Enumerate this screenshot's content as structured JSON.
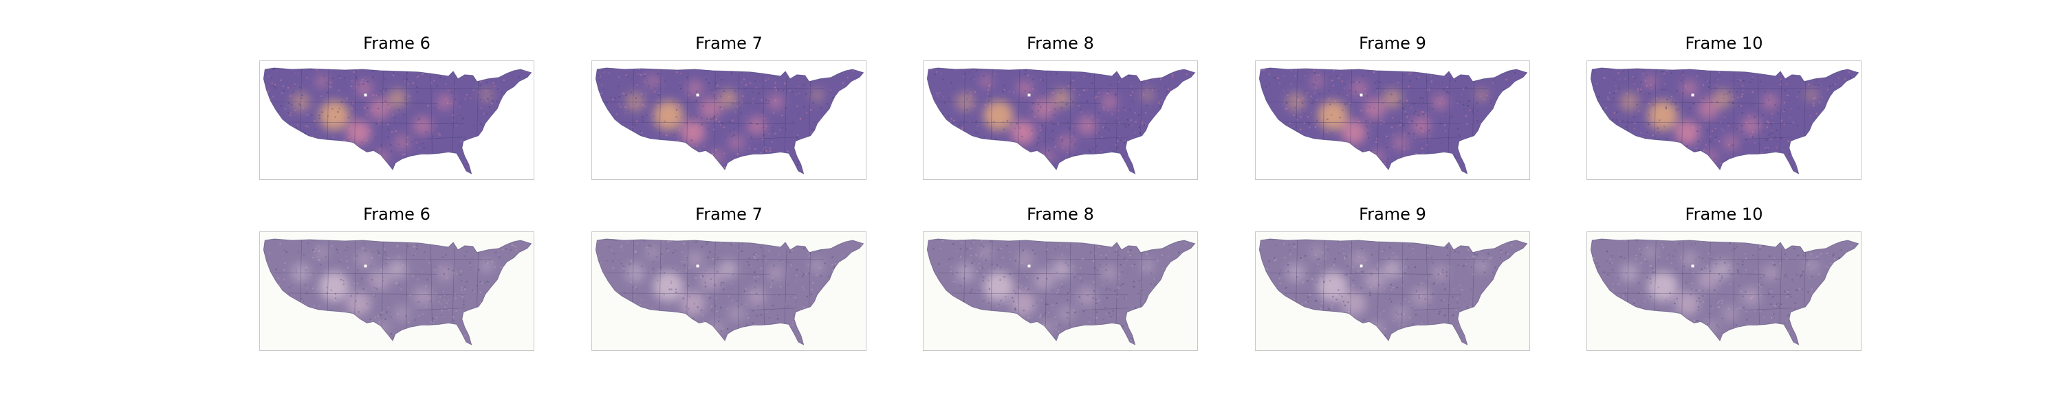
{
  "figure": {
    "rows": [
      {
        "variant": "vivid",
        "colors": {
          "base": "#6f5a9e",
          "warm": "#e58aa1",
          "hot": "#f2b37a",
          "dark": "#3f3a6f",
          "snow": "#ffffff"
        },
        "panels": [
          {
            "title": "Frame 6"
          },
          {
            "title": "Frame 7"
          },
          {
            "title": "Frame 8"
          },
          {
            "title": "Frame 9"
          },
          {
            "title": "Frame 10"
          }
        ]
      },
      {
        "variant": "muted",
        "colors": {
          "base": "#8a7aa4",
          "warm": "#c7aec6",
          "hot": "#d9c6d6",
          "dark": "#4d456e",
          "snow": "#ffffff"
        },
        "panels": [
          {
            "title": "Frame 6"
          },
          {
            "title": "Frame 7"
          },
          {
            "title": "Frame 8"
          },
          {
            "title": "Frame 9"
          },
          {
            "title": "Frame 10"
          }
        ]
      }
    ]
  }
}
